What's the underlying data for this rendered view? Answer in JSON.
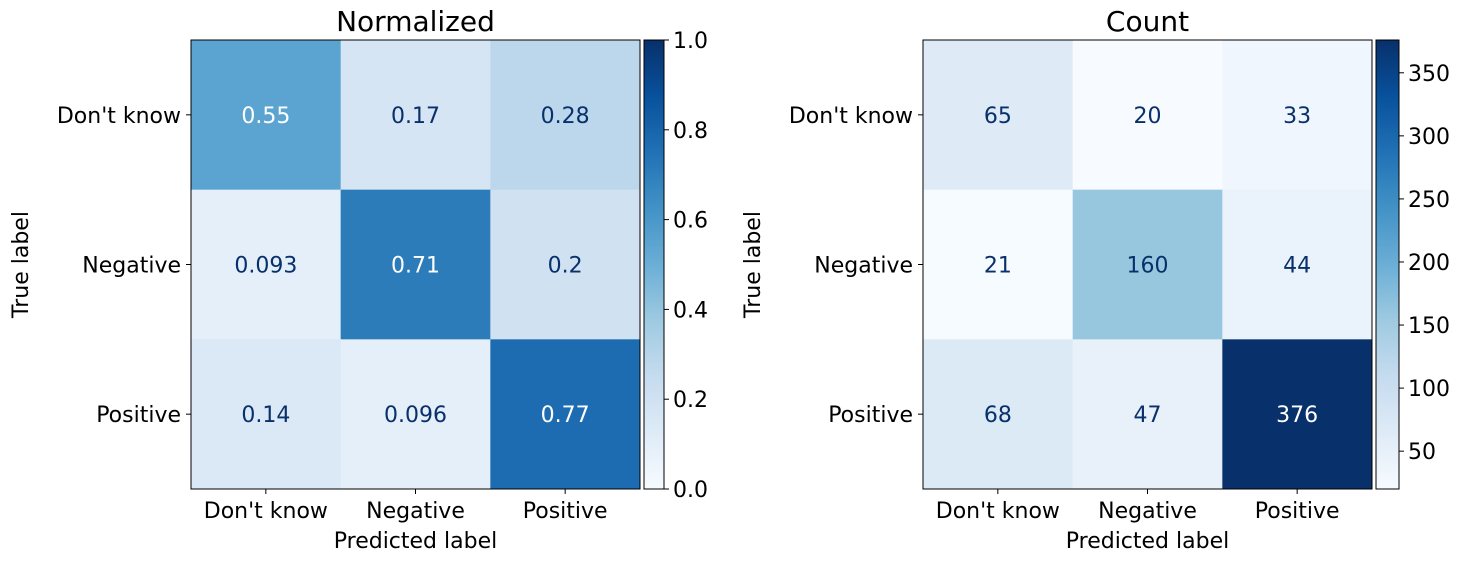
{
  "chart_data": [
    {
      "type": "heatmap",
      "title": "Normalized",
      "xlabel": "Predicted label",
      "ylabel": "True label",
      "x_categories": [
        "Don't know",
        "Negative",
        "Positive"
      ],
      "y_categories": [
        "Don't know",
        "Negative",
        "Positive"
      ],
      "values": [
        [
          0.55,
          0.17,
          0.28
        ],
        [
          0.093,
          0.71,
          0.2
        ],
        [
          0.14,
          0.096,
          0.77
        ]
      ],
      "value_labels": [
        [
          "0.55",
          "0.17",
          "0.28"
        ],
        [
          "0.093",
          "0.71",
          "0.2"
        ],
        [
          "0.14",
          "0.096",
          "0.77"
        ]
      ],
      "colormap": "Blues",
      "color_range": [
        0,
        1
      ],
      "colorbar_ticks": [
        0.0,
        0.2,
        0.4,
        0.6,
        0.8,
        1.0
      ],
      "colorbar_tick_labels": [
        "0.0",
        "0.2",
        "0.4",
        "0.6",
        "0.8",
        "1.0"
      ]
    },
    {
      "type": "heatmap",
      "title": "Count",
      "xlabel": "Predicted label",
      "ylabel": "True label",
      "x_categories": [
        "Don't know",
        "Negative",
        "Positive"
      ],
      "y_categories": [
        "Don't know",
        "Negative",
        "Positive"
      ],
      "values": [
        [
          65,
          20,
          33
        ],
        [
          21,
          160,
          44
        ],
        [
          68,
          47,
          376
        ]
      ],
      "value_labels": [
        [
          "65",
          "20",
          "33"
        ],
        [
          "21",
          "160",
          "44"
        ],
        [
          "68",
          "47",
          "376"
        ]
      ],
      "colormap": "Blues",
      "color_range": [
        20,
        376
      ],
      "colorbar_ticks": [
        50,
        100,
        150,
        200,
        250,
        300,
        350
      ],
      "colorbar_tick_labels": [
        "50",
        "100",
        "150",
        "200",
        "250",
        "300",
        "350"
      ]
    }
  ]
}
